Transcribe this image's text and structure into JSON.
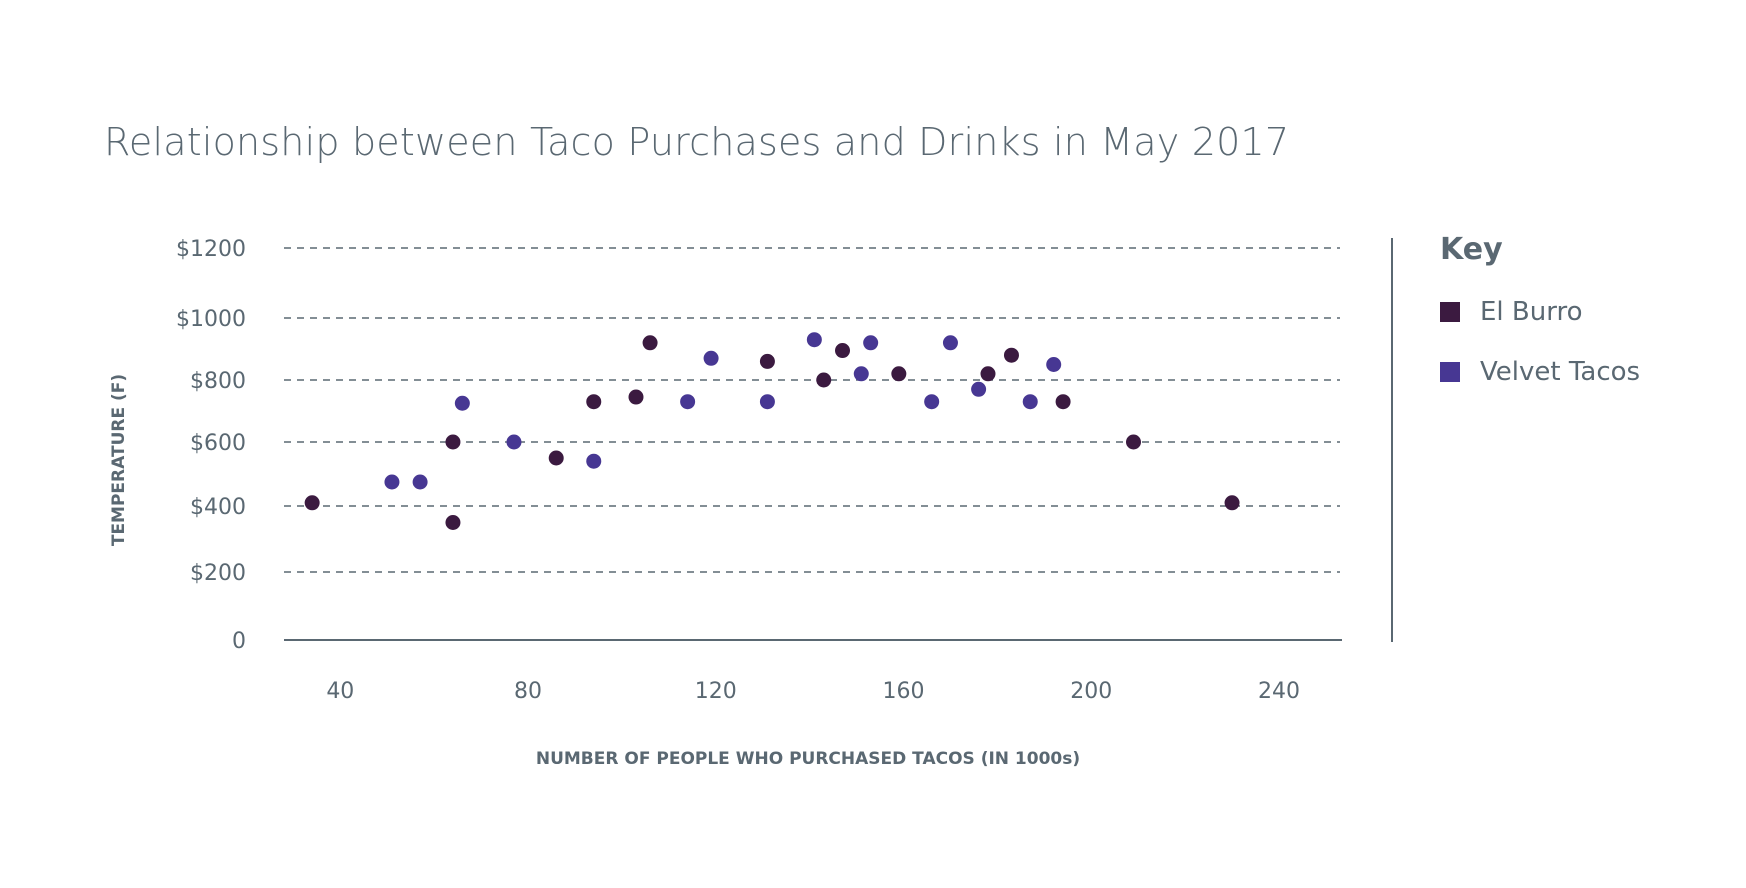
{
  "chart_data": {
    "type": "scatter",
    "title": "Relationship between Taco Purchases and Drinks in May 2017",
    "xlabel": "NUMBER OF PEOPLE WHO PURCHASED TACOS (IN 1000s)",
    "ylabel": "TEMPERATURE (F)",
    "xlim": [
      28,
      253
    ],
    "ylim": [
      0,
      1200
    ],
    "x_ticks": [
      {
        "value": 40,
        "label": "40"
      },
      {
        "value": 80,
        "label": "80"
      },
      {
        "value": 120,
        "label": "120"
      },
      {
        "value": 160,
        "label": "160"
      },
      {
        "value": 200,
        "label": "200"
      },
      {
        "value": 240,
        "label": "240"
      }
    ],
    "y_ticks": [
      {
        "value": 0,
        "label": "0"
      },
      {
        "value": 200,
        "label": "$200"
      },
      {
        "value": 400,
        "label": "$400"
      },
      {
        "value": 600,
        "label": "$600"
      },
      {
        "value": 800,
        "label": "$800"
      },
      {
        "value": 1000,
        "label": "$1000"
      },
      {
        "value": 1200,
        "label": "$1200"
      }
    ],
    "grid": "horizontal-dashed",
    "legend_title": "Key",
    "legend_position": "right",
    "series": [
      {
        "name": "El Burro",
        "color": "#3b1a40",
        "points": [
          {
            "x": 34,
            "y": 410
          },
          {
            "x": 64,
            "y": 600
          },
          {
            "x": 64,
            "y": 350
          },
          {
            "x": 86,
            "y": 550
          },
          {
            "x": 94,
            "y": 730
          },
          {
            "x": 103,
            "y": 745
          },
          {
            "x": 106,
            "y": 920
          },
          {
            "x": 131,
            "y": 860
          },
          {
            "x": 143,
            "y": 800
          },
          {
            "x": 147,
            "y": 895
          },
          {
            "x": 159,
            "y": 820
          },
          {
            "x": 178,
            "y": 820
          },
          {
            "x": 183,
            "y": 880
          },
          {
            "x": 194,
            "y": 730
          },
          {
            "x": 209,
            "y": 600
          },
          {
            "x": 230,
            "y": 410
          }
        ]
      },
      {
        "name": "Velvet Tacos",
        "color": "#473793",
        "points": [
          {
            "x": 51,
            "y": 475
          },
          {
            "x": 57,
            "y": 475
          },
          {
            "x": 66,
            "y": 725
          },
          {
            "x": 77,
            "y": 600
          },
          {
            "x": 94,
            "y": 540
          },
          {
            "x": 114,
            "y": 730
          },
          {
            "x": 119,
            "y": 870
          },
          {
            "x": 131,
            "y": 730
          },
          {
            "x": 141,
            "y": 930
          },
          {
            "x": 151,
            "y": 820
          },
          {
            "x": 153,
            "y": 920
          },
          {
            "x": 166,
            "y": 730
          },
          {
            "x": 170,
            "y": 920
          },
          {
            "x": 176,
            "y": 770
          },
          {
            "x": 187,
            "y": 730
          },
          {
            "x": 192,
            "y": 850
          }
        ]
      }
    ]
  }
}
